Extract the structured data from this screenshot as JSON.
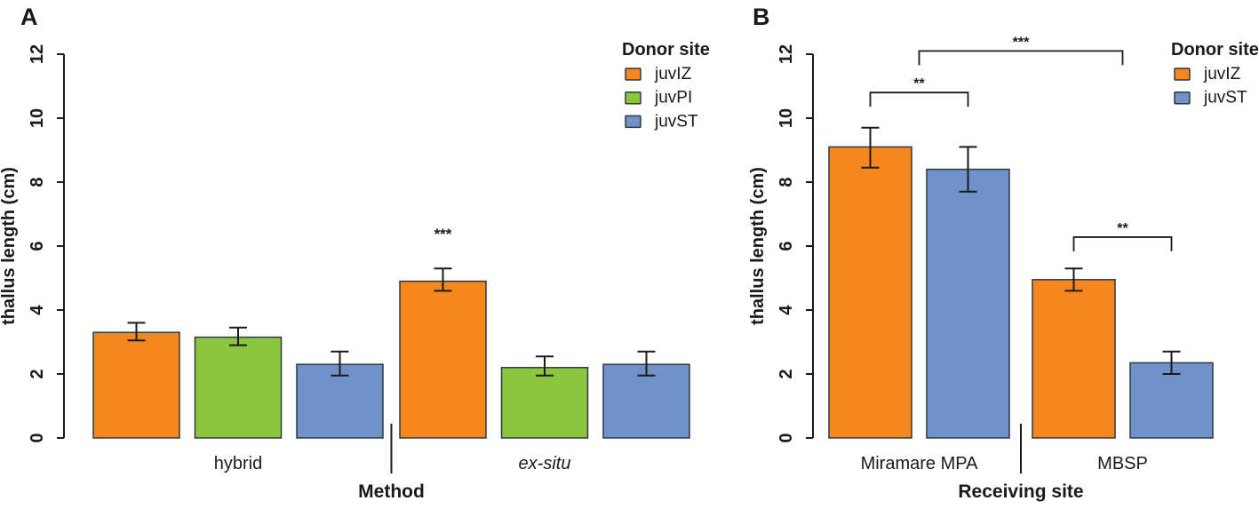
{
  "figure": {
    "background": "#ffffff",
    "text_color": "#1a1a1a",
    "axis_color": "#1a1a1a",
    "bar_border_color": "#2b3a42"
  },
  "chart_data": [
    {
      "type": "bar",
      "panel_label": "A",
      "xlabel": "Method",
      "ylabel": "thallus length (cm)",
      "ylim": [
        0,
        12
      ],
      "yticks": [
        0,
        2,
        4,
        6,
        8,
        10,
        12
      ],
      "grid": false,
      "legend": {
        "title": "Donor site",
        "position": "top-right",
        "entries": [
          {
            "label": "juvIZ",
            "color": "#F5871E"
          },
          {
            "label": "juvPI",
            "color": "#8CC63E"
          },
          {
            "label": "juvST",
            "color": "#7191C9"
          }
        ]
      },
      "groups": [
        {
          "label": "hybrid",
          "italic": false,
          "bars": [
            {
              "series": "juvIZ",
              "value": 3.3,
              "err_low": 3.05,
              "err_high": 3.6
            },
            {
              "series": "juvPI",
              "value": 3.15,
              "err_low": 2.9,
              "err_high": 3.45
            },
            {
              "series": "juvST",
              "value": 2.3,
              "err_low": 1.95,
              "err_high": 2.7
            }
          ]
        },
        {
          "label": "ex-situ",
          "italic": true,
          "bars": [
            {
              "series": "juvIZ",
              "value": 4.9,
              "err_low": 4.6,
              "err_high": 5.3,
              "sig": "***"
            },
            {
              "series": "juvPI",
              "value": 2.2,
              "err_low": 1.95,
              "err_high": 2.55
            },
            {
              "series": "juvST",
              "value": 2.3,
              "err_low": 1.95,
              "err_high": 2.7
            }
          ]
        }
      ],
      "brackets": []
    },
    {
      "type": "bar",
      "panel_label": "B",
      "xlabel": "Receiving site",
      "ylabel": "thallus length (cm)",
      "ylim": [
        0,
        12
      ],
      "yticks": [
        0,
        2,
        4,
        6,
        8,
        10,
        12
      ],
      "grid": false,
      "legend": {
        "title": "Donor site",
        "position": "top-right",
        "entries": [
          {
            "label": "juvIZ",
            "color": "#F5871E"
          },
          {
            "label": "juvST",
            "color": "#7191C9"
          }
        ]
      },
      "groups": [
        {
          "label": "Miramare MPA",
          "italic": false,
          "bars": [
            {
              "series": "juvIZ",
              "value": 9.1,
              "err_low": 8.45,
              "err_high": 9.7
            },
            {
              "series": "juvST",
              "value": 8.4,
              "err_low": 7.7,
              "err_high": 9.1
            }
          ]
        },
        {
          "label": "MBSP",
          "italic": false,
          "bars": [
            {
              "series": "juvIZ",
              "value": 4.95,
              "err_low": 4.6,
              "err_high": 5.3
            },
            {
              "series": "juvST",
              "value": 2.35,
              "err_low": 2.0,
              "err_high": 2.7
            }
          ]
        }
      ],
      "brackets": [
        {
          "from": "bar:0",
          "to": "bar:1",
          "y": 10.8,
          "label": "**"
        },
        {
          "from": "group:0",
          "to": "group:1",
          "y": 12.1,
          "label": "***"
        },
        {
          "from": "bar:2",
          "to": "bar:3",
          "y": 6.28,
          "label": "**"
        }
      ]
    }
  ]
}
